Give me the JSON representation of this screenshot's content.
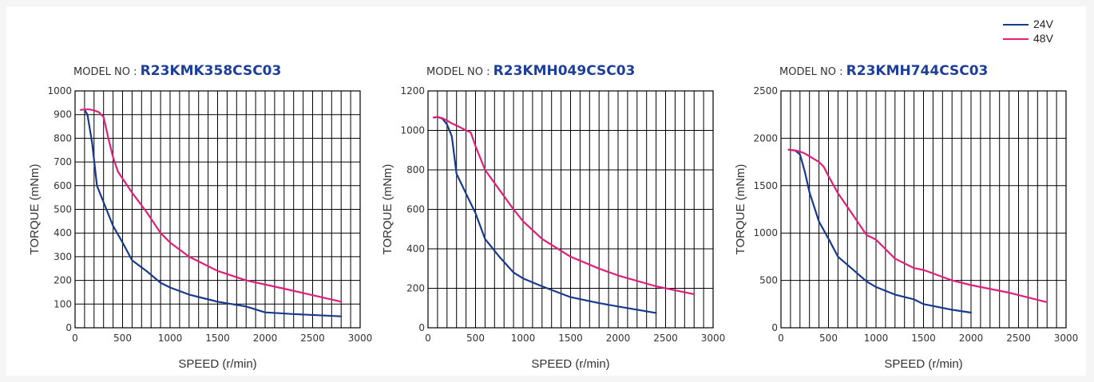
{
  "legend": {
    "series_24v": "24V",
    "series_48v": "48V"
  },
  "colors": {
    "series_24v": "#183a8c",
    "series_48v": "#e01e7c",
    "model_number": "#1e3f99",
    "grid": "#000000",
    "axis_text": "#333333"
  },
  "chart_data": [
    {
      "type": "line",
      "model_label": "MODEL NO :",
      "model_number": "R23KMK358CSC03",
      "xlabel": "SPEED (r/min)",
      "ylabel": "TORQUE (mNm)",
      "xlim": [
        0,
        3000
      ],
      "ylim": [
        0,
        1000
      ],
      "xticks": [
        0,
        500,
        1000,
        1500,
        2000,
        2500,
        3000
      ],
      "yticks": [
        0,
        100,
        200,
        300,
        400,
        500,
        600,
        700,
        800,
        900,
        1000
      ],
      "grid": true,
      "series": [
        {
          "name": "24V",
          "x": [
            100,
            130,
            180,
            230,
            300,
            400,
            500,
            600,
            750,
            900,
            1000,
            1200,
            1500,
            1800,
            2000,
            2300,
            2800
          ],
          "y": [
            920,
            900,
            780,
            600,
            530,
            430,
            360,
            285,
            240,
            190,
            170,
            140,
            110,
            90,
            65,
            58,
            48
          ]
        },
        {
          "name": "48V",
          "x": [
            60,
            100,
            150,
            200,
            250,
            300,
            350,
            400,
            450,
            500,
            600,
            750,
            900,
            1000,
            1200,
            1500,
            1800,
            2200,
            2800
          ],
          "y": [
            920,
            922,
            922,
            918,
            910,
            890,
            800,
            720,
            660,
            630,
            570,
            490,
            400,
            360,
            300,
            240,
            200,
            165,
            110
          ]
        }
      ]
    },
    {
      "type": "line",
      "model_label": "MODEL NO :",
      "model_number": "R23KMH049CSC03",
      "xlabel": "SPEED (r/min)",
      "ylabel": "TORQUE (mNm)",
      "xlim": [
        0,
        3000
      ],
      "ylim": [
        0,
        1200
      ],
      "xticks": [
        0,
        500,
        1000,
        1500,
        2000,
        2500,
        3000
      ],
      "yticks": [
        0,
        200,
        400,
        600,
        800,
        1000,
        1200
      ],
      "grid": true,
      "series": [
        {
          "name": "24V",
          "x": [
            60,
            100,
            150,
            200,
            250,
            300,
            400,
            500,
            600,
            750,
            900,
            1000,
            1200,
            1500,
            1800,
            2000,
            2400
          ],
          "y": [
            1065,
            1068,
            1060,
            1030,
            970,
            780,
            680,
            580,
            450,
            360,
            280,
            250,
            210,
            155,
            125,
            108,
            75
          ]
        },
        {
          "name": "48V",
          "x": [
            60,
            100,
            150,
            200,
            250,
            300,
            400,
            450,
            500,
            600,
            750,
            900,
            1000,
            1200,
            1500,
            1800,
            2000,
            2400,
            2800
          ],
          "y": [
            1065,
            1068,
            1062,
            1050,
            1035,
            1025,
            1000,
            990,
            920,
            800,
            700,
            600,
            540,
            450,
            360,
            300,
            265,
            210,
            170
          ]
        }
      ]
    },
    {
      "type": "line",
      "model_label": "MODEL NO :",
      "model_number": "R23KMH744CSC03",
      "xlabel": "SPEED (r/min)",
      "ylabel": "TORQUE (mNm)",
      "xlim": [
        0,
        3000
      ],
      "ylim": [
        0,
        2500
      ],
      "xticks": [
        0,
        500,
        1000,
        1500,
        2000,
        2500,
        3000
      ],
      "yticks": [
        0,
        500,
        1000,
        1500,
        2000,
        2500
      ],
      "grid": true,
      "series": [
        {
          "name": "24V",
          "x": [
            80,
            150,
            200,
            250,
            300,
            400,
            500,
            600,
            750,
            900,
            1000,
            1200,
            1400,
            1500,
            1800,
            2000
          ],
          "y": [
            1880,
            1870,
            1830,
            1650,
            1430,
            1120,
            940,
            750,
            620,
            490,
            430,
            350,
            300,
            250,
            190,
            160
          ]
        },
        {
          "name": "48V",
          "x": [
            80,
            150,
            200,
            250,
            300,
            400,
            450,
            500,
            600,
            750,
            900,
            1000,
            1200,
            1400,
            1500,
            1800,
            2000,
            2400,
            2800
          ],
          "y": [
            1880,
            1872,
            1860,
            1840,
            1810,
            1750,
            1700,
            1600,
            1420,
            1200,
            980,
            930,
            730,
            630,
            610,
            500,
            450,
            370,
            270
          ]
        }
      ]
    }
  ]
}
